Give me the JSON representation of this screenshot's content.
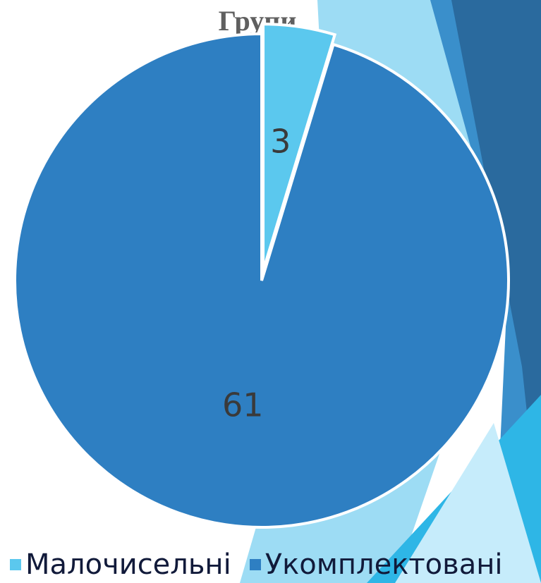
{
  "chart_data": {
    "type": "pie",
    "title": "Групи",
    "categories": [
      "Малочисельні",
      "Укомплектовані"
    ],
    "values": [
      3,
      61
    ],
    "colors": [
      "#5bc8ee",
      "#2e7fc2"
    ],
    "legend_position": "bottom",
    "data_labels": true,
    "exploded_slice": "Малочисельні"
  },
  "theme": {
    "slide_accent_light": "#7fd4f1",
    "slide_accent_mid": "#3a9ad6",
    "slide_accent_dark": "#2a6a9e"
  }
}
